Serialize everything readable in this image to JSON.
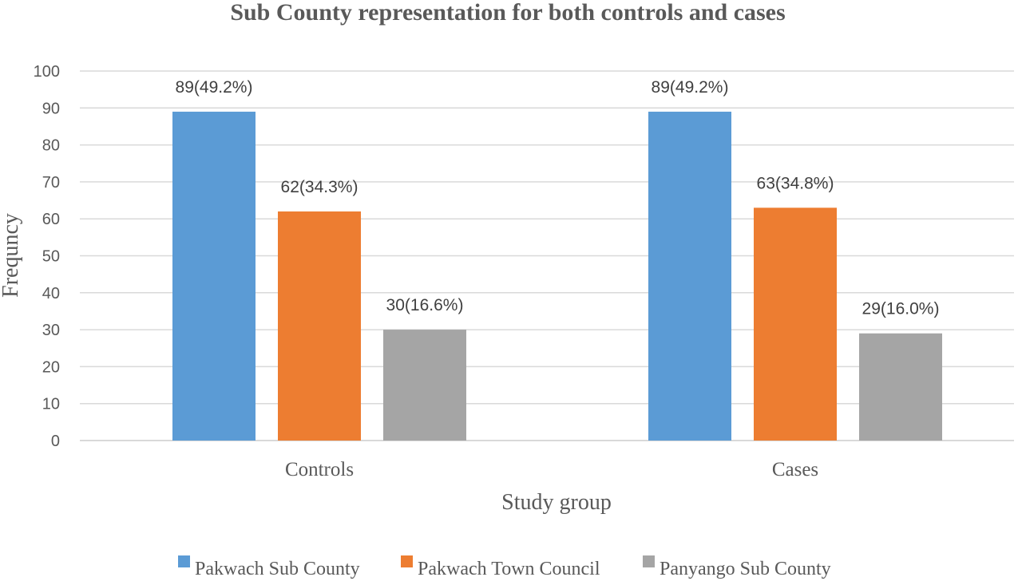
{
  "chart_data": {
    "type": "bar",
    "title": "Sub County representation for both controls and cases",
    "xlabel": "Study group",
    "ylabel": "Frequncy",
    "categories": [
      "Controls",
      "Cases"
    ],
    "ylim": [
      0,
      100
    ],
    "yticks": [
      0,
      10,
      20,
      30,
      40,
      50,
      60,
      70,
      80,
      90,
      100
    ],
    "grid": true,
    "legend_position": "bottom",
    "series": [
      {
        "name": "Pakwach Sub County",
        "color": "#5b9bd5",
        "values": [
          89,
          89
        ],
        "labels": [
          "89(49.2%)",
          "89(49.2%)"
        ]
      },
      {
        "name": "Pakwach Town Council",
        "color": "#ed7d31",
        "values": [
          62,
          63
        ],
        "labels": [
          "62(34.3%)",
          "63(34.8%)"
        ]
      },
      {
        "name": "Panyango Sub County",
        "color": "#a5a5a5",
        "values": [
          30,
          29
        ],
        "labels": [
          "30(16.6%)",
          "29(16.0%)"
        ]
      }
    ]
  }
}
